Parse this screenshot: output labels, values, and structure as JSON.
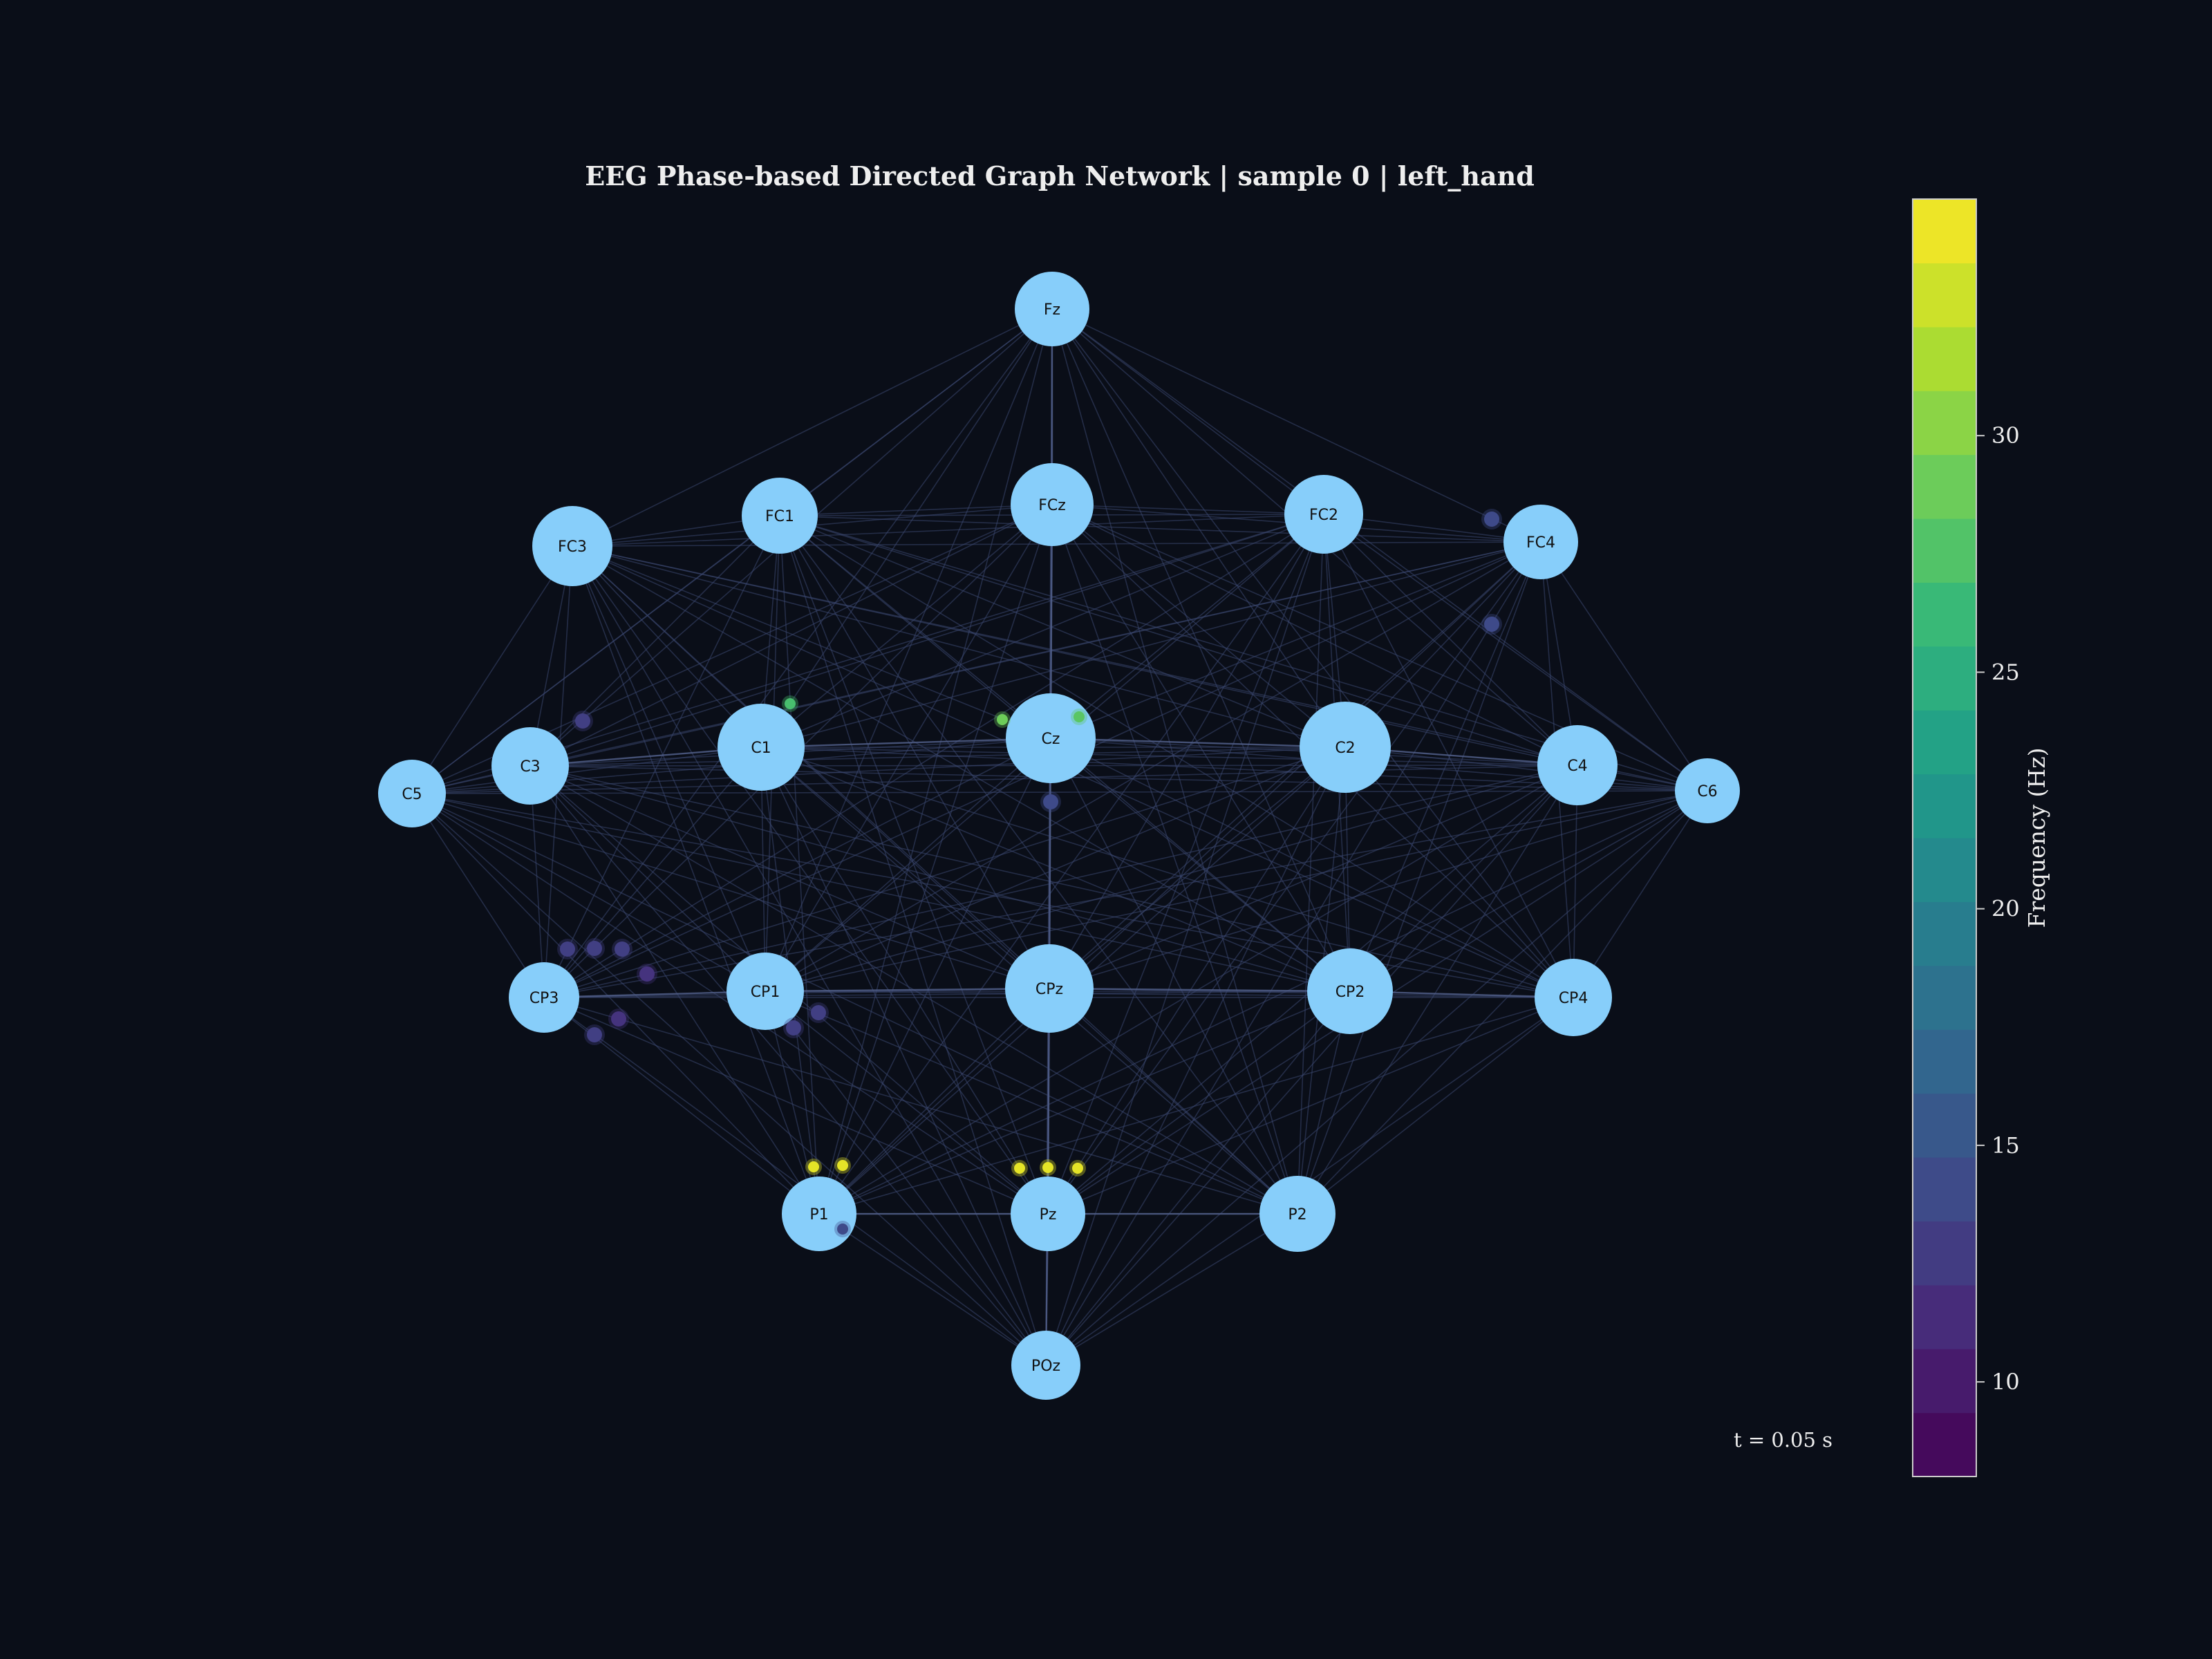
{
  "title": "EEG Phase-based Directed Graph Network | sample 0 | left_hand",
  "time_label": "t = 0.05 s",
  "colorbar": {
    "label": "Frequency (Hz)",
    "min": 8,
    "max": 35,
    "ticks": [
      10,
      15,
      20,
      25,
      30
    ],
    "tick_labels": [
      "10",
      "15",
      "20",
      "25",
      "30"
    ],
    "colormap": "viridis"
  },
  "colors": {
    "background": "#0a0e18",
    "node_fill": "#87cefa",
    "edge": "#3a4770",
    "text": "#eeeeee"
  },
  "nodes": [
    {
      "id": "Fz",
      "label": "Fz"
    },
    {
      "id": "FC3",
      "label": "FC3"
    },
    {
      "id": "FC1",
      "label": "FC1"
    },
    {
      "id": "FCz",
      "label": "FCz"
    },
    {
      "id": "FC2",
      "label": "FC2"
    },
    {
      "id": "FC4",
      "label": "FC4"
    },
    {
      "id": "C5",
      "label": "C5"
    },
    {
      "id": "C3",
      "label": "C3"
    },
    {
      "id": "C1",
      "label": "C1"
    },
    {
      "id": "Cz",
      "label": "Cz"
    },
    {
      "id": "C2",
      "label": "C2"
    },
    {
      "id": "C4",
      "label": "C4"
    },
    {
      "id": "C6",
      "label": "C6"
    },
    {
      "id": "CP3",
      "label": "CP3"
    },
    {
      "id": "CP1",
      "label": "CP1"
    },
    {
      "id": "CPz",
      "label": "CPz"
    },
    {
      "id": "CP2",
      "label": "CP2"
    },
    {
      "id": "CP4",
      "label": "CP4"
    },
    {
      "id": "P1",
      "label": "P1"
    },
    {
      "id": "Pz",
      "label": "Pz"
    },
    {
      "id": "P2",
      "label": "P2"
    },
    {
      "id": "POz",
      "label": "POz"
    }
  ],
  "pulses": [
    {
      "freq": 14
    },
    {
      "freq": 14
    },
    {
      "freq": 27
    },
    {
      "freq": 13
    },
    {
      "freq": 29
    },
    {
      "freq": 28
    },
    {
      "freq": 14
    },
    {
      "freq": 13
    },
    {
      "freq": 13
    },
    {
      "freq": 13
    },
    {
      "freq": 12
    },
    {
      "freq": 12
    },
    {
      "freq": 13
    },
    {
      "freq": 13
    },
    {
      "freq": 13
    },
    {
      "freq": 14
    },
    {
      "freq": 34
    },
    {
      "freq": 34
    },
    {
      "freq": 34
    },
    {
      "freq": 34
    },
    {
      "freq": 34
    },
    {
      "freq": 14
    }
  ]
}
